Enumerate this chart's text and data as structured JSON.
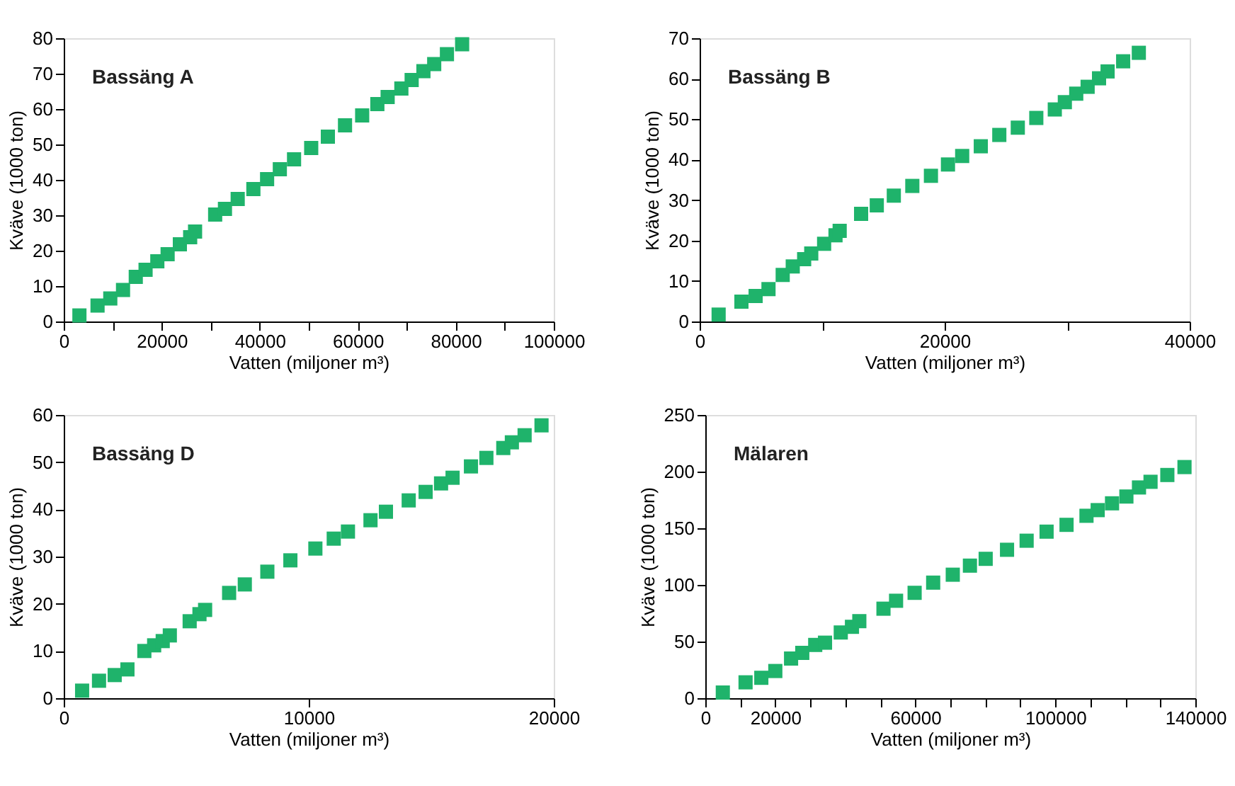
{
  "chart_data": [
    {
      "type": "scatter",
      "title": "Bassäng A",
      "xlabel": "Vatten (miljoner m³)",
      "ylabel": "Kväve (1000 ton)",
      "marker": "square",
      "grid": false,
      "xlim": [
        0,
        100000
      ],
      "ylim": [
        0,
        80
      ],
      "xticks": [
        0,
        {
          "value": 10000,
          "label": null
        },
        20000,
        {
          "value": 30000,
          "label": null
        },
        40000,
        {
          "value": 50000,
          "label": null
        },
        60000,
        {
          "value": 70000,
          "label": null
        },
        80000,
        {
          "value": 90000,
          "label": null
        },
        100000
      ],
      "yticks": [
        0,
        10,
        20,
        30,
        40,
        50,
        60,
        70,
        80
      ],
      "series": [
        {
          "color": "#1fb36b",
          "x": [
            3200,
            6900,
            9500,
            12100,
            14700,
            16700,
            19100,
            21200,
            23700,
            25800,
            26800,
            30900,
            32900,
            35500,
            38700,
            41500,
            44100,
            47000,
            50500,
            53900,
            57400,
            60900,
            64000,
            66100,
            68900,
            71000,
            73400,
            75600,
            78200,
            81300
          ],
          "values": [
            1.7,
            4.5,
            6.5,
            8.9,
            12.6,
            14.6,
            17.0,
            19.0,
            21.8,
            23.8,
            25.4,
            30.2,
            31.8,
            34.6,
            37.4,
            40.2,
            43.0,
            45.8,
            49.0,
            52.2,
            55.4,
            58.2,
            61.4,
            63.4,
            65.8,
            68.2,
            70.7,
            72.7,
            75.5,
            78.3
          ]
        }
      ]
    },
    {
      "type": "scatter",
      "title": "Bassäng B",
      "xlabel": "Vatten (miljoner m³)",
      "ylabel": "Kväve (1000 ton)",
      "marker": "square",
      "grid": false,
      "xlim": [
        0,
        40000
      ],
      "ylim": [
        0,
        70
      ],
      "xticks": [
        0,
        {
          "value": 10000,
          "label": null
        },
        20000,
        {
          "value": 30000,
          "label": null
        },
        40000
      ],
      "yticks": [
        0,
        10,
        20,
        30,
        40,
        50,
        60,
        70
      ],
      "series": [
        {
          "color": "#1fb36b",
          "x": [
            1550,
            3410,
            4570,
            5620,
            6780,
            7600,
            8530,
            9110,
            10160,
            11090,
            11430,
            13180,
            14460,
            15850,
            17360,
            18880,
            20270,
            21430,
            22950,
            24460,
            25970,
            27480,
            28990,
            29810,
            30740,
            31670,
            32600,
            33300,
            34570,
            35850
          ],
          "values": [
            1.7,
            4.9,
            6.3,
            8.0,
            11.5,
            13.6,
            15.4,
            16.8,
            19.2,
            21.3,
            22.4,
            26.6,
            28.7,
            31.1,
            33.5,
            36.0,
            38.8,
            40.9,
            43.3,
            46.1,
            47.9,
            50.3,
            52.4,
            54.2,
            56.3,
            58.0,
            60.1,
            61.8,
            64.3,
            66.4
          ]
        }
      ]
    },
    {
      "type": "scatter",
      "title": "Bassäng D",
      "xlabel": "Vatten (miljoner m³)",
      "ylabel": "Kväve (1000 ton)",
      "marker": "square",
      "grid": false,
      "xlim": [
        0,
        20000
      ],
      "ylim": [
        0,
        60
      ],
      "xticks": [
        0,
        10000,
        20000
      ],
      "yticks": [
        0,
        10,
        20,
        30,
        40,
        50,
        60
      ],
      "series": [
        {
          "color": "#1fb36b",
          "x": [
            750,
            1440,
            2080,
            2600,
            3290,
            3690,
            4040,
            4330,
            5140,
            5540,
            5770,
            6750,
            7390,
            8310,
            9250,
            10270,
            11020,
            11600,
            12520,
            13150,
            14080,
            14770,
            15400,
            15870,
            16620,
            17250,
            17940,
            18290,
            18810,
            19500
          ],
          "values": [
            1.6,
            3.7,
            4.9,
            6.1,
            10.0,
            11.2,
            12.1,
            13.3,
            16.3,
            17.8,
            18.7,
            22.3,
            24.1,
            26.8,
            29.2,
            31.7,
            33.8,
            35.3,
            37.7,
            39.5,
            41.9,
            43.7,
            45.5,
            46.7,
            49.1,
            50.9,
            53.0,
            54.2,
            55.7,
            57.8
          ]
        }
      ]
    },
    {
      "type": "scatter",
      "title": "Mälaren",
      "xlabel": "Vatten (miljoner m³)",
      "ylabel": "Kväve (1000 ton)",
      "marker": "square",
      "grid": false,
      "xlim": [
        0,
        140000
      ],
      "ylim": [
        0,
        250
      ],
      "xticks": [
        0,
        {
          "value": 10000,
          "label": null
        },
        20000,
        {
          "value": 30000,
          "label": null
        },
        {
          "value": 40000,
          "label": null
        },
        {
          "value": 50000,
          "label": null
        },
        60000,
        {
          "value": 70000,
          "label": null
        },
        {
          "value": 80000,
          "label": null
        },
        {
          "value": 90000,
          "label": null
        },
        100000,
        {
          "value": 110000,
          "label": null
        },
        {
          "value": 120000,
          "label": null
        },
        {
          "value": 130000,
          "label": null
        },
        140000
      ],
      "yticks": [
        0,
        50,
        100,
        150,
        200,
        250
      ],
      "series": [
        {
          "color": "#1fb36b",
          "x": [
            5000,
            11500,
            16000,
            20000,
            24500,
            27700,
            31400,
            34200,
            38700,
            41900,
            44000,
            50900,
            54500,
            59800,
            65100,
            70700,
            75600,
            80100,
            86200,
            91800,
            97500,
            103200,
            108900,
            112100,
            116200,
            120300,
            123900,
            127200,
            132000,
            136900
          ],
          "values": [
            5,
            14,
            18,
            24,
            35,
            40,
            47,
            49,
            58,
            63,
            68,
            79,
            86,
            93,
            102,
            109,
            117,
            123,
            131,
            139,
            147,
            153,
            161,
            166,
            172,
            178,
            186,
            191,
            197,
            204
          ]
        }
      ]
    }
  ]
}
